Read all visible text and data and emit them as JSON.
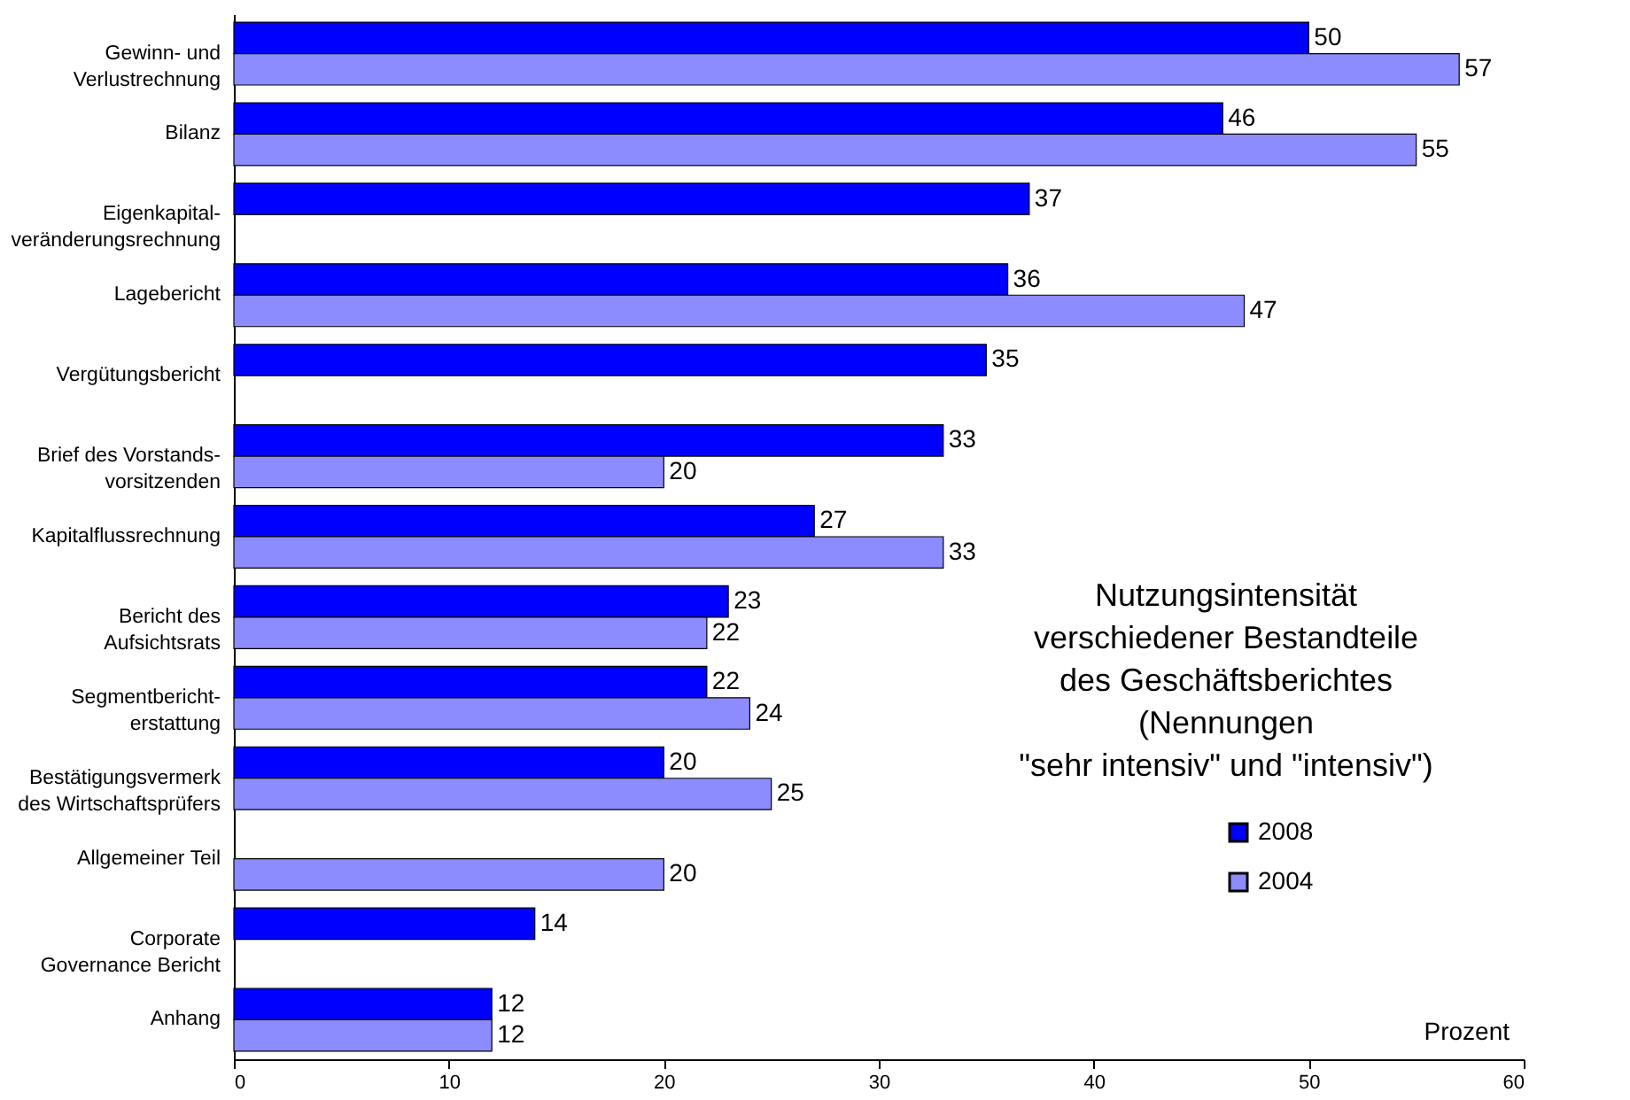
{
  "chart_data": {
    "type": "bar",
    "orientation": "horizontal",
    "categories": [
      "Gewinn- und\nVerlustrechnung",
      "Bilanz",
      "Eigenkapital-\nveränderungsrechnung",
      "Lagebericht",
      "Vergütungsbericht",
      "Brief des Vorstands-\nvorsitzenden",
      "Kapitalflussrechnung",
      "Bericht des\nAufsichtsrats",
      "Segmentbericht-\nerstattung",
      "Bestätigungsvermerk\ndes Wirtschaftsprüfers",
      "Allgemeiner Teil",
      "Corporate\nGovernance Bericht",
      "Anhang"
    ],
    "series": [
      {
        "name": "2008",
        "color": "#0000ff",
        "values": [
          50,
          46,
          37,
          36,
          35,
          33,
          27,
          23,
          22,
          20,
          null,
          14,
          12
        ]
      },
      {
        "name": "2004",
        "color": "#8c8cff",
        "values": [
          57,
          55,
          null,
          47,
          null,
          20,
          33,
          22,
          24,
          25,
          20,
          null,
          12
        ]
      }
    ],
    "xlim": [
      0,
      60
    ],
    "xticks": [
      0,
      10,
      20,
      30,
      40,
      50,
      60
    ],
    "xlabel": "Prozent",
    "data_labels": true,
    "grid": false,
    "legend": "right",
    "annotations": [
      "Nutzungsintensität\nverschiedener Bestandteile\ndes Geschäftsberichtes\n(Nennungen\n\"sehr intensiv\" und \"intensiv\")"
    ]
  }
}
